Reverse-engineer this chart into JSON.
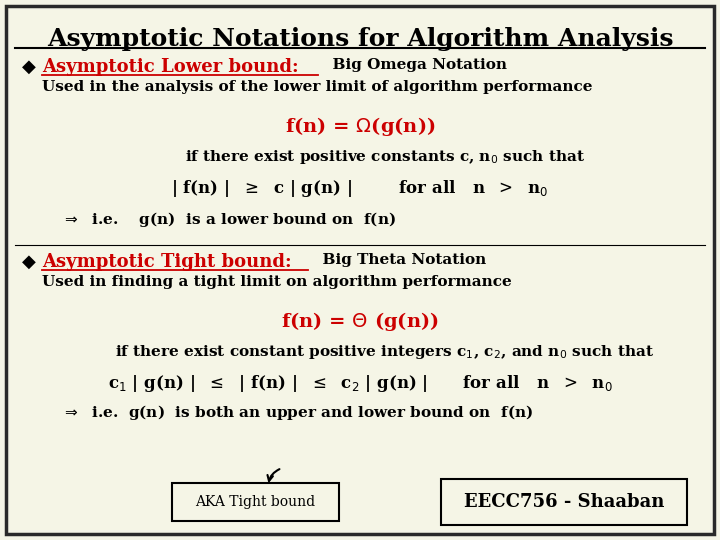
{
  "title": "Asymptotic Notations for Algorithm Analysis",
  "bg_color": "#f5f5e6",
  "border_color": "#2a2a2a",
  "title_color": "#000000",
  "red_color": "#cc0000",
  "black_color": "#000000",
  "footer_left": "AKA Tight bound",
  "footer_right": "EECC756 - Shaaban",
  "bullet": "◆"
}
